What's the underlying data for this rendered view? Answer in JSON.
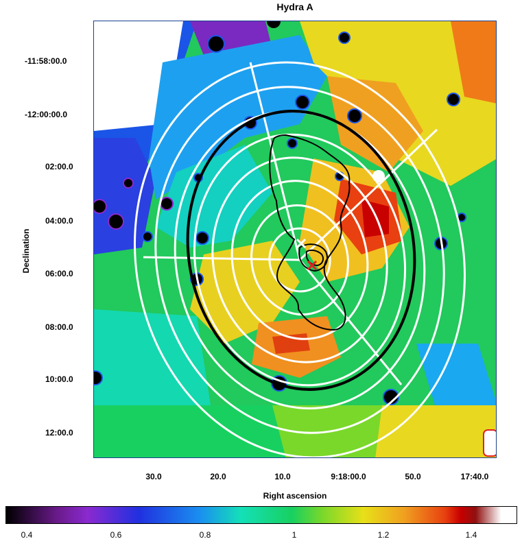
{
  "title": "Hydra A",
  "axes": {
    "xlabel": "Right ascension",
    "ylabel": "Declination",
    "xticks": [
      "30.0",
      "20.0",
      "10.0",
      "9:18:00.0",
      "50.0",
      "17:40.0"
    ],
    "yticks": [
      "-11:58:00.0",
      "-12:00:00.0",
      "02:00.0",
      "04:00.0",
      "06:00.0",
      "08:00.0",
      "10:00.0",
      "12:00.0"
    ]
  },
  "colorbar": {
    "ticks": [
      "0.4",
      "0.6",
      "0.8",
      "1",
      "1.2",
      "1.4"
    ],
    "range": [
      0.37,
      1.5
    ]
  },
  "colors": {
    "frame": "#1a3f8f",
    "rings": "#ffffff",
    "r500": "#000000",
    "center": "#e02020"
  }
}
